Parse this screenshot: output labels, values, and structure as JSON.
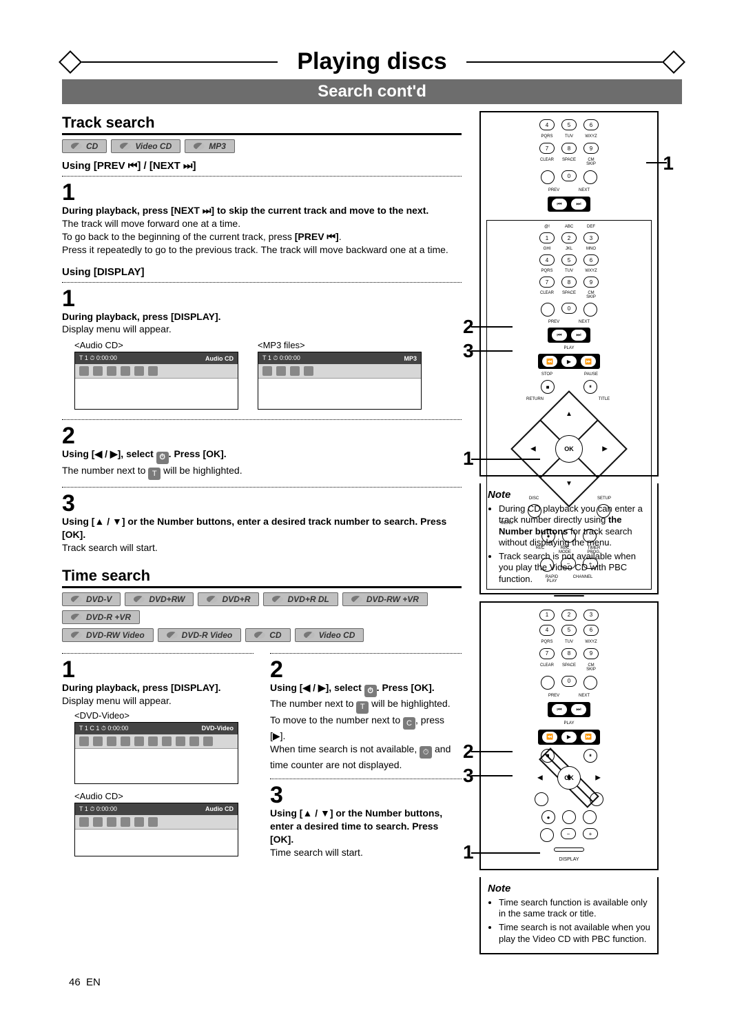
{
  "header": {
    "title": "Playing discs",
    "subtitle": "Search cont'd"
  },
  "track": {
    "heading": "Track search",
    "badges": [
      "CD",
      "Video CD",
      "MP3"
    ],
    "using_prev_next": "Using [PREV ⏮] / [NEXT ⏭]",
    "step1": {
      "num": "1",
      "bold": "During playback, press [NEXT ⏭] to skip the current track and move to the next.",
      "l1": "The track will move forward one at a time.",
      "l2_a": "To go back to the beginning of the current track, press ",
      "l2_b": "[PREV ⏮]",
      "l2_c": ".",
      "l3": "Press it repeatedly to go to the previous track. The track will move backward one at a time."
    },
    "using_display": "Using [DISPLAY]",
    "d_step1": {
      "num": "1",
      "bold": "During playback, press [DISPLAY].",
      "l1": "Display menu will appear."
    },
    "shots": {
      "audio_label": "<Audio CD>",
      "audio_header": "T  1  ⏱ 0:00:00",
      "audio_right": "Audio CD",
      "mp3_label": "<MP3 files>",
      "mp3_header": "T  1  ⏱ 0:00:00",
      "mp3_right": "MP3"
    },
    "step2": {
      "num": "2",
      "bold_a": "Using [◀ / ▶], select ",
      "bold_b": ". Press [OK].",
      "l1_a": "The number next to ",
      "l1_b": " will be highlighted."
    },
    "step3": {
      "num": "3",
      "bold": "Using [▲ / ▼] or the Number buttons, enter a desired track number to search. Press [OK].",
      "l1": "Track search will start."
    }
  },
  "time": {
    "heading": "Time search",
    "badges1": [
      "DVD-V",
      "DVD+RW",
      "DVD+R",
      "DVD+R DL",
      "DVD-RW +VR",
      "DVD-R +VR"
    ],
    "badges2": [
      "DVD-RW Video",
      "DVD-R Video",
      "CD",
      "Video CD"
    ],
    "left": {
      "num": "1",
      "bold": "During playback, press [DISPLAY].",
      "l1": "Display menu will appear.",
      "dvd_label": "<DVD-Video>",
      "dvd_header": "T  1  C  1  ⏱ 0:00:00",
      "dvd_right": "DVD-Video",
      "cd_label": "<Audio CD>",
      "cd_header": "T  1  ⏱ 0:00:00",
      "cd_right": "Audio CD"
    },
    "right": {
      "num2": "2",
      "bold2a": "Using [◀ / ▶], select ",
      "bold2b": ". Press [OK].",
      "l2a": "The number next to ",
      "l2b": " will be highlighted.",
      "l2c_a": "To move to the number next to ",
      "l2c_b": ", press [▶].",
      "l2d_a": "When time search is not available, ",
      "l2d_b": " and time counter are not displayed.",
      "num3": "3",
      "bold3": "Using [▲ / ▼] or the Number buttons, enter a desired time to search. Press [OK].",
      "l3": "Time search will start."
    }
  },
  "remote": {
    "callout_1": "1",
    "callout_2": "2",
    "callout_3": "3",
    "ok": "OK",
    "prev": "PREV",
    "next": "NEXT",
    "clear": "CLEAR",
    "space": "SPACE",
    "cmskip": "CM SKIP",
    "play": "PLAY",
    "stop": "STOP",
    "pause": "PAUSE",
    "return": "RETURN",
    "title_btn": "TITLE",
    "disc": "DISC",
    "setup": "SETUP",
    "menu": "MENU",
    "rec": "REC",
    "recmode": "REC MODE",
    "timerprog": "TIMER PROG.",
    "rapid": "RAPID PLAY",
    "channel": "CHANNEL",
    "display": "DISPLAY",
    "pqrs": "PQRS",
    "tuv": "TUV",
    "wxyz": "WXYZ",
    "ghi": "GHI",
    "jkl": "JKL",
    "mno": "MNO",
    "abc_a": "@!",
    "abc_b": "ABC",
    "abc_c": "DEF"
  },
  "note1": {
    "title": "Note",
    "items": [
      "During CD playback you can enter a track number directly using <b>the Number buttons</b> for track search without displaying the menu.",
      "Track search is not available when you play the Video CD with PBC function."
    ]
  },
  "note2": {
    "title": "Note",
    "items": [
      "Time search function is available only in the same track or title.",
      "Time search is not available when you play the Video CD with PBC function."
    ]
  },
  "footer": {
    "page": "46",
    "lang": "EN"
  }
}
